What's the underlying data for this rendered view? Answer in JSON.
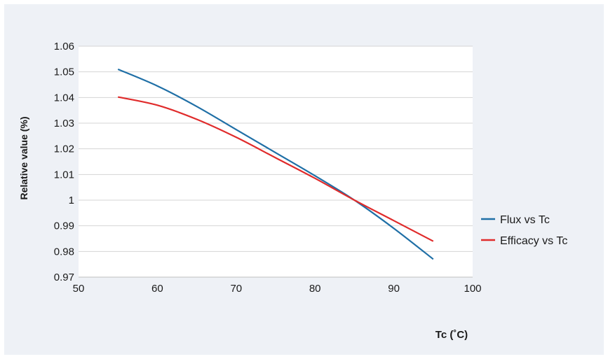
{
  "chart_data": {
    "type": "line",
    "title": "",
    "xlabel": "Tc (˚C)",
    "ylabel": "Relative value (%)",
    "xlim": [
      50,
      100
    ],
    "ylim": [
      0.97,
      1.06
    ],
    "x_ticks": [
      "50",
      "60",
      "70",
      "80",
      "90",
      "100"
    ],
    "y_ticks": [
      "0.97",
      "0.98",
      "0.99",
      "1",
      "1.01",
      "1.02",
      "1.03",
      "1.04",
      "1.05",
      "1.06"
    ],
    "grid": "horizontal",
    "legend_position": "right",
    "series": [
      {
        "name": "Flux vs Tc",
        "color": "#1f6fa6",
        "x": [
          55,
          60,
          65,
          70,
          75,
          80,
          85,
          90,
          95
        ],
        "y": [
          1.051,
          1.0445,
          1.0365,
          1.0275,
          1.0185,
          1.0095,
          1.0,
          0.989,
          0.977
        ]
      },
      {
        "name": "Efficacy vs Tc",
        "color": "#e02b2b",
        "x": [
          55,
          60,
          65,
          70,
          75,
          80,
          85,
          90,
          95
        ],
        "y": [
          1.0402,
          1.037,
          1.0315,
          1.0245,
          1.0165,
          1.0085,
          1.0,
          0.992,
          0.984
        ]
      }
    ]
  }
}
